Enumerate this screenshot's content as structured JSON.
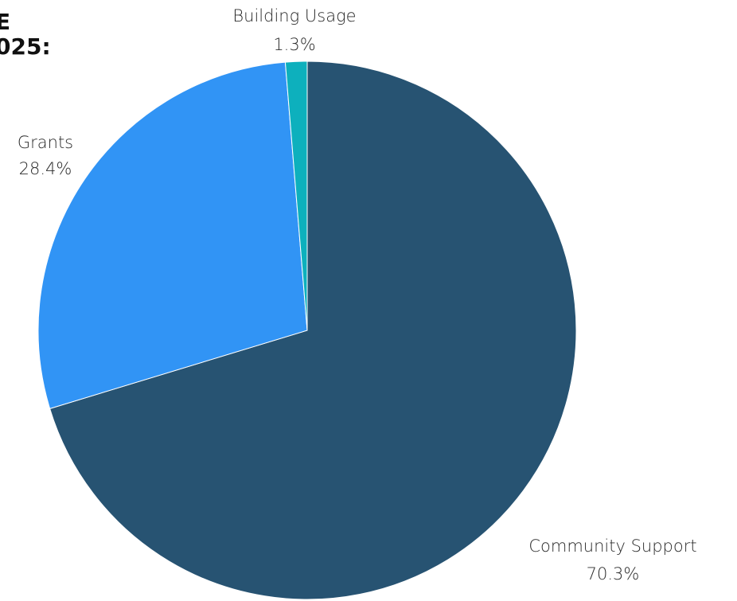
{
  "heading": {
    "line1": "E",
    "line2": "025:"
  },
  "chart_data": {
    "type": "pie",
    "title": "",
    "slices": [
      {
        "label": "Community Support",
        "value": 70.3,
        "display": "70.3%",
        "color": "#275372"
      },
      {
        "label": "Grants",
        "value": 28.4,
        "display": "28.4%",
        "color": "#3194f5"
      },
      {
        "label": "Building Usage",
        "value": 1.3,
        "display": "1.3%",
        "color": "#0db0bd"
      }
    ],
    "start_angle_deg": 0,
    "direction": "clockwise",
    "legend": "none",
    "labels_outside": true
  }
}
